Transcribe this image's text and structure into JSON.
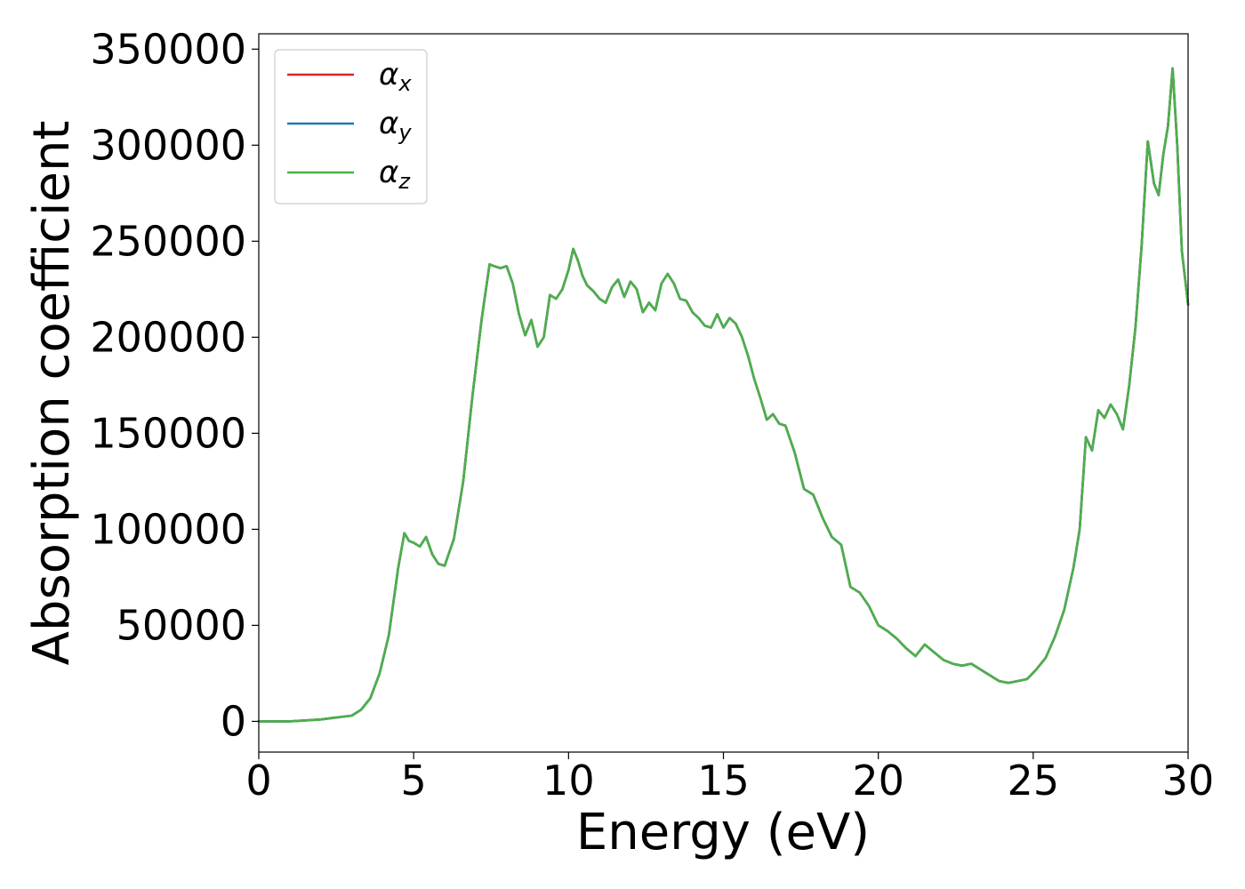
{
  "chart_data": {
    "type": "line",
    "title": "",
    "xlabel": "Energy (eV)",
    "ylabel": "Absorption coefficient",
    "xlim": [
      0,
      30
    ],
    "ylim": [
      -16000,
      358000
    ],
    "xticks": [
      "0",
      "5",
      "10",
      "15",
      "20",
      "25",
      "30"
    ],
    "yticks": [
      "0",
      "50000",
      "100000",
      "150000",
      "200000",
      "250000",
      "300000",
      "350000"
    ],
    "grid": false,
    "legend_position": "top-left",
    "x": [
      0,
      1,
      2,
      2.5,
      3,
      3.3,
      3.6,
      3.9,
      4.2,
      4.5,
      4.7,
      4.85,
      5.0,
      5.2,
      5.4,
      5.6,
      5.8,
      6.0,
      6.3,
      6.6,
      6.9,
      7.2,
      7.45,
      7.6,
      7.8,
      8.0,
      8.2,
      8.4,
      8.6,
      8.8,
      9.0,
      9.2,
      9.4,
      9.6,
      9.8,
      10.0,
      10.15,
      10.3,
      10.45,
      10.6,
      10.8,
      11.0,
      11.2,
      11.4,
      11.6,
      11.8,
      12.0,
      12.2,
      12.4,
      12.6,
      12.8,
      13.0,
      13.2,
      13.4,
      13.6,
      13.8,
      14.0,
      14.2,
      14.4,
      14.6,
      14.8,
      15.0,
      15.2,
      15.4,
      15.6,
      15.8,
      16.0,
      16.2,
      16.4,
      16.6,
      16.8,
      17.0,
      17.3,
      17.6,
      17.9,
      18.2,
      18.5,
      18.8,
      19.1,
      19.4,
      19.7,
      20.0,
      20.3,
      20.6,
      20.9,
      21.2,
      21.5,
      21.8,
      22.1,
      22.4,
      22.7,
      23.0,
      23.3,
      23.6,
      23.9,
      24.2,
      24.5,
      24.8,
      25.1,
      25.4,
      25.7,
      26.0,
      26.3,
      26.5,
      26.7,
      26.9,
      27.1,
      27.3,
      27.5,
      27.7,
      27.9,
      28.1,
      28.3,
      28.5,
      28.7,
      28.9,
      29.05,
      29.2,
      29.35,
      29.5,
      29.65,
      29.8,
      30.0
    ],
    "series": [
      {
        "name": "αx",
        "color": "#d62728",
        "values": [
          0,
          0,
          1000,
          2000,
          3000,
          6000,
          12000,
          25000,
          45000,
          80000,
          98000,
          94000,
          93000,
          91000,
          96000,
          87000,
          82000,
          81000,
          95000,
          125000,
          170000,
          210000,
          238000,
          237000,
          236000,
          237000,
          228000,
          212000,
          201000,
          209000,
          195000,
          200000,
          222000,
          220000,
          225000,
          235000,
          246000,
          240000,
          232000,
          227000,
          224000,
          220000,
          218000,
          226000,
          230000,
          221000,
          229000,
          225000,
          213000,
          218000,
          214000,
          228000,
          233000,
          228000,
          220000,
          219000,
          213000,
          210000,
          206000,
          205000,
          212000,
          205000,
          210000,
          207000,
          200000,
          190000,
          178000,
          168000,
          157000,
          160000,
          155000,
          154000,
          140000,
          121000,
          118000,
          106000,
          96000,
          92000,
          70000,
          67000,
          60000,
          50000,
          47000,
          43000,
          38000,
          34000,
          40000,
          36000,
          32000,
          30000,
          29000,
          30000,
          27000,
          24000,
          21000,
          20000,
          21000,
          22000,
          27000,
          33000,
          44000,
          58000,
          80000,
          100000,
          148000,
          141000,
          162000,
          158000,
          165000,
          160000,
          152000,
          175000,
          205000,
          248000,
          302000,
          280000,
          274000,
          295000,
          310000,
          340000,
          300000,
          245000,
          217000
        ]
      },
      {
        "name": "αy",
        "color": "#1f77b4",
        "values": [
          0,
          0,
          1000,
          2000,
          3000,
          6000,
          12000,
          25000,
          45000,
          80000,
          98000,
          94000,
          93000,
          91000,
          96000,
          87000,
          82000,
          81000,
          95000,
          125000,
          170000,
          210000,
          238000,
          237000,
          236000,
          237000,
          228000,
          212000,
          201000,
          209000,
          195000,
          200000,
          222000,
          220000,
          225000,
          235000,
          246000,
          240000,
          232000,
          227000,
          224000,
          220000,
          218000,
          226000,
          230000,
          221000,
          229000,
          225000,
          213000,
          218000,
          214000,
          228000,
          233000,
          228000,
          220000,
          219000,
          213000,
          210000,
          206000,
          205000,
          212000,
          205000,
          210000,
          207000,
          200000,
          190000,
          178000,
          168000,
          157000,
          160000,
          155000,
          154000,
          140000,
          121000,
          118000,
          106000,
          96000,
          92000,
          70000,
          67000,
          60000,
          50000,
          47000,
          43000,
          38000,
          34000,
          40000,
          36000,
          32000,
          30000,
          29000,
          30000,
          27000,
          24000,
          21000,
          20000,
          21000,
          22000,
          27000,
          33000,
          44000,
          58000,
          80000,
          100000,
          148000,
          141000,
          162000,
          158000,
          165000,
          160000,
          152000,
          175000,
          205000,
          248000,
          302000,
          280000,
          274000,
          295000,
          310000,
          340000,
          300000,
          245000,
          217000
        ]
      },
      {
        "name": "αz",
        "color": "#4daf4a",
        "values": [
          0,
          0,
          1000,
          2000,
          3000,
          6000,
          12000,
          25000,
          45000,
          80000,
          98000,
          94000,
          93000,
          91000,
          96000,
          87000,
          82000,
          81000,
          95000,
          125000,
          170000,
          210000,
          238000,
          237000,
          236000,
          237000,
          228000,
          212000,
          201000,
          209000,
          195000,
          200000,
          222000,
          220000,
          225000,
          235000,
          246000,
          240000,
          232000,
          227000,
          224000,
          220000,
          218000,
          226000,
          230000,
          221000,
          229000,
          225000,
          213000,
          218000,
          214000,
          228000,
          233000,
          228000,
          220000,
          219000,
          213000,
          210000,
          206000,
          205000,
          212000,
          205000,
          210000,
          207000,
          200000,
          190000,
          178000,
          168000,
          157000,
          160000,
          155000,
          154000,
          140000,
          121000,
          118000,
          106000,
          96000,
          92000,
          70000,
          67000,
          60000,
          50000,
          47000,
          43000,
          38000,
          34000,
          40000,
          36000,
          32000,
          30000,
          29000,
          30000,
          27000,
          24000,
          21000,
          20000,
          21000,
          22000,
          27000,
          33000,
          44000,
          58000,
          80000,
          100000,
          148000,
          141000,
          162000,
          158000,
          165000,
          160000,
          152000,
          175000,
          205000,
          248000,
          302000,
          280000,
          274000,
          295000,
          310000,
          340000,
          300000,
          245000,
          217000
        ]
      }
    ],
    "legend": [
      {
        "symbol": "α",
        "sub": "x",
        "color": "#d62728"
      },
      {
        "symbol": "α",
        "sub": "y",
        "color": "#1f77b4"
      },
      {
        "symbol": "α",
        "sub": "z",
        "color": "#4daf4a"
      }
    ]
  }
}
